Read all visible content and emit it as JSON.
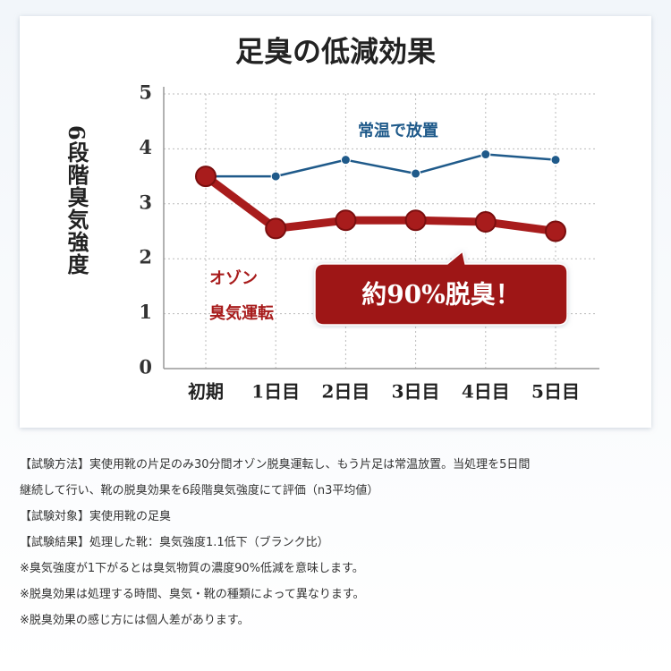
{
  "chart_data": {
    "type": "line",
    "title": "足臭の低減効果",
    "y_label": "6段階臭気強度",
    "categories": [
      "初期",
      "1日目",
      "2日目",
      "3日目",
      "4日目",
      "5日目"
    ],
    "series": [
      {
        "name": "常温で放置",
        "color": "#1f5a8a",
        "values": [
          3.5,
          3.5,
          3.8,
          3.55,
          3.9,
          3.8
        ]
      },
      {
        "name": "オゾン\n臭気運転",
        "color": "#a81c1c",
        "values": [
          3.5,
          2.55,
          2.7,
          2.7,
          2.67,
          2.5
        ]
      }
    ],
    "ylim": [
      0,
      5
    ],
    "yticks": [
      0,
      1,
      2,
      3,
      4,
      5
    ],
    "grid": true,
    "annotation": "約90%脱臭！"
  },
  "notes": [
    "【試験方法】実使用靴の片足のみ30分間オゾン脱臭運転し、もう片足は常温放置。当処理を5日間",
    "継続して行い、靴の脱臭効果を6段階臭気強度にて評価（n3平均値）",
    "【試験対象】実使用靴の足臭",
    "【試験結果】処理した靴：臭気強度1.1低下（ブランク比）",
    "※臭気強度が1下がるとは臭気物質の濃度90%低減を意味します。",
    "※脱臭効果は処理する時間、臭気・靴の種類によって異なります。",
    "※脱臭効果の感じ方には個人差があります。"
  ]
}
